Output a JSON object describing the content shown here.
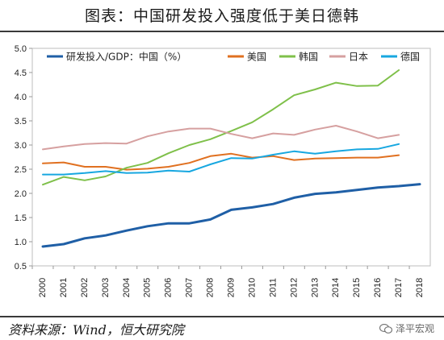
{
  "header": {
    "title": "图表：中国研发投入强度低于美日德韩"
  },
  "footer": {
    "source": "资料来源：Wind，恒大研究院",
    "watermark": "泽平宏观"
  },
  "chart_data": {
    "type": "line",
    "title": "图表：中国研发投入强度低于美日德韩",
    "xlabel": "",
    "ylabel": "",
    "ylim": [
      0.5,
      5.0
    ],
    "yticks": [
      "0.5",
      "1.0",
      "1.5",
      "2.0",
      "2.5",
      "3.0",
      "3.5",
      "4.0",
      "4.5",
      "5.0"
    ],
    "categories": [
      "2000",
      "2001",
      "2002",
      "2003",
      "2004",
      "2005",
      "2006",
      "2007",
      "2008",
      "2009",
      "2010",
      "2011",
      "2012",
      "2013",
      "2014",
      "2015",
      "2016",
      "2017",
      "2018"
    ],
    "grid": false,
    "legend_position": "top",
    "series": [
      {
        "name": "研发投入/GDP：中国（%）",
        "color": "#1f5fa6",
        "width": 3,
        "values": [
          0.9,
          0.95,
          1.07,
          1.13,
          1.23,
          1.32,
          1.38,
          1.38,
          1.46,
          1.66,
          1.71,
          1.78,
          1.91,
          1.99,
          2.02,
          2.07,
          2.12,
          2.15,
          2.19
        ]
      },
      {
        "name": "美国",
        "color": "#e07020",
        "width": 2,
        "values": [
          2.62,
          2.64,
          2.55,
          2.55,
          2.49,
          2.51,
          2.55,
          2.63,
          2.77,
          2.82,
          2.74,
          2.77,
          2.69,
          2.72,
          2.73,
          2.74,
          2.74,
          2.79,
          null
        ]
      },
      {
        "name": "韩国",
        "color": "#7fc04a",
        "width": 2,
        "values": [
          2.18,
          2.34,
          2.27,
          2.35,
          2.53,
          2.63,
          2.83,
          3.0,
          3.12,
          3.29,
          3.47,
          3.74,
          4.03,
          4.15,
          4.29,
          4.22,
          4.23,
          4.55,
          null
        ]
      },
      {
        "name": "日本",
        "color": "#d6a0a0",
        "width": 2,
        "values": [
          2.91,
          2.97,
          3.02,
          3.04,
          3.03,
          3.18,
          3.28,
          3.34,
          3.34,
          3.23,
          3.14,
          3.24,
          3.21,
          3.32,
          3.4,
          3.28,
          3.14,
          3.21,
          null
        ]
      },
      {
        "name": "德国",
        "color": "#17a7e0",
        "width": 2,
        "values": [
          2.39,
          2.39,
          2.42,
          2.46,
          2.42,
          2.43,
          2.47,
          2.45,
          2.6,
          2.73,
          2.72,
          2.8,
          2.87,
          2.82,
          2.87,
          2.91,
          2.92,
          3.02,
          null
        ]
      }
    ]
  }
}
